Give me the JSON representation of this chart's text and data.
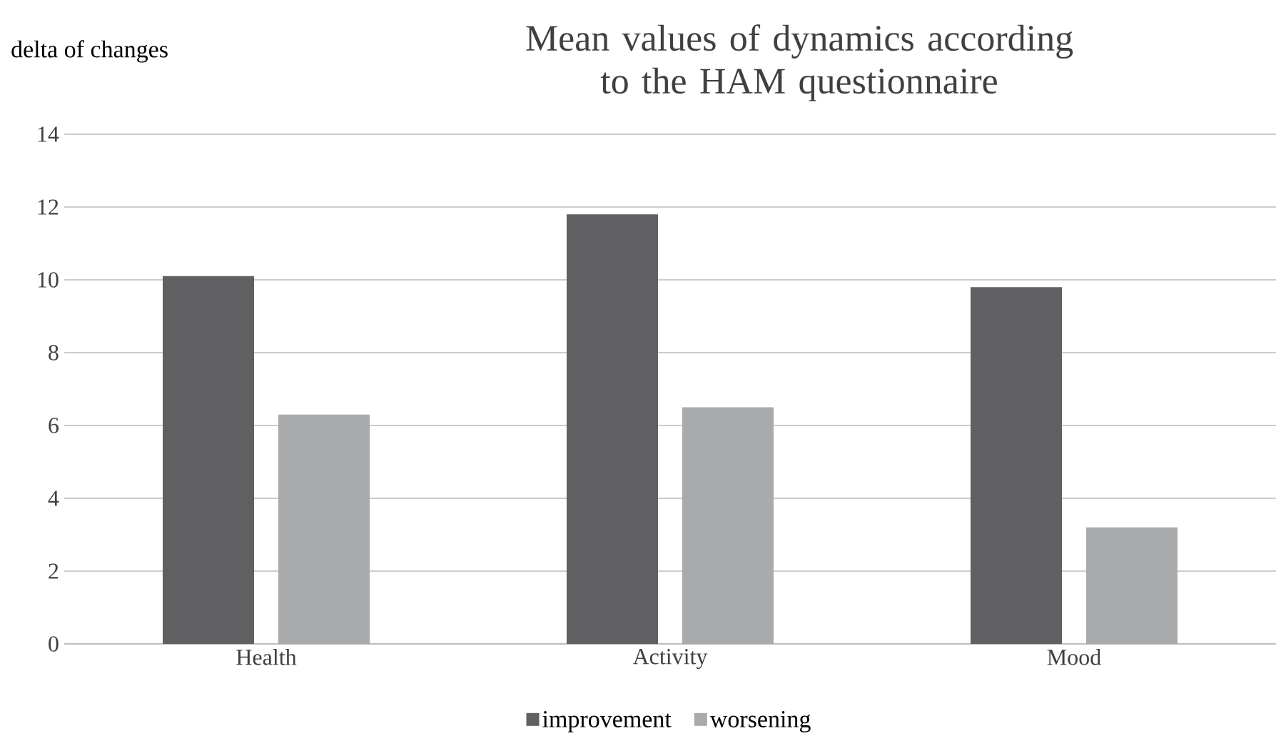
{
  "chart_data": {
    "type": "bar",
    "title": "Mean values of dynamics according to the HAM questionnaire",
    "ylabel": "delta of changes",
    "categories": [
      "Health",
      "Activity",
      "Mood"
    ],
    "series": [
      {
        "name": "improvement",
        "color": "#606062",
        "values": [
          10.1,
          11.8,
          9.8
        ]
      },
      {
        "name": "worsening",
        "color": "#a9aaac",
        "values": [
          6.3,
          6.5,
          3.2
        ]
      }
    ],
    "ylim": [
      0,
      14
    ],
    "yticks": [
      0,
      2,
      4,
      6,
      8,
      10,
      12,
      14
    ],
    "grid": "y",
    "legend": "bottom"
  }
}
